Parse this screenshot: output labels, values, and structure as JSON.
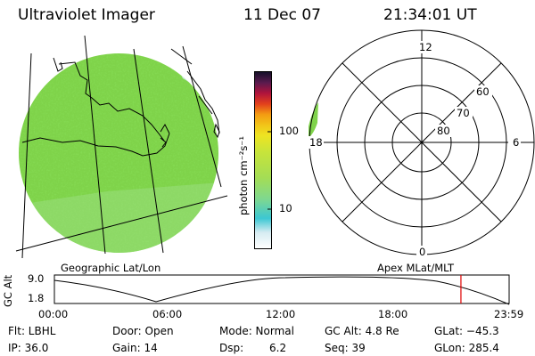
{
  "header": {
    "instrument": "Ultraviolet Imager",
    "date": "11 Dec 07",
    "time": "21:34:01 UT"
  },
  "map_panel": {
    "caption": "Geographic Lat/Lon",
    "emission_color": "#7fd34a",
    "grid_color": "#000000"
  },
  "colorbar": {
    "unit_label": "photon cm⁻²s⁻¹",
    "ticks": [
      "100",
      "10"
    ],
    "colors": [
      "#ffffff",
      "#cfe6ee",
      "#3cc7d3",
      "#8fd88c",
      "#b8e04a",
      "#e4e92a",
      "#f5d71e",
      "#f39b12",
      "#e2401c",
      "#b0133c",
      "#5a1a4e",
      "#15102a"
    ]
  },
  "polar_panel": {
    "caption": "Apex MLat/MLT",
    "mlt_labels": {
      "top": "12",
      "bottom": "0",
      "left": "18",
      "right": "6"
    },
    "lat_labels": [
      "60",
      "70",
      "80"
    ]
  },
  "timeline": {
    "ylabel": "GC Alt",
    "y_ticks": [
      "9.0",
      "1.8"
    ],
    "x_ticks": [
      "00:00",
      "06:00",
      "12:00",
      "18:00",
      "23:59"
    ],
    "current_time_fraction": 0.894,
    "marker_color": "#e00000"
  },
  "info": {
    "flt": "Flt: LBHL",
    "ip": "IP: 36.0",
    "door": "Door: Open",
    "gain": "Gain: 14",
    "mode": "Mode: Normal",
    "dsp_label": "Dsp:",
    "dsp_value": "6.2",
    "gc_alt": "GC Alt: 4.8 Re",
    "seq": "Seq: 39",
    "glat": "GLat: −45.3",
    "glon": "GLon: 285.4"
  }
}
